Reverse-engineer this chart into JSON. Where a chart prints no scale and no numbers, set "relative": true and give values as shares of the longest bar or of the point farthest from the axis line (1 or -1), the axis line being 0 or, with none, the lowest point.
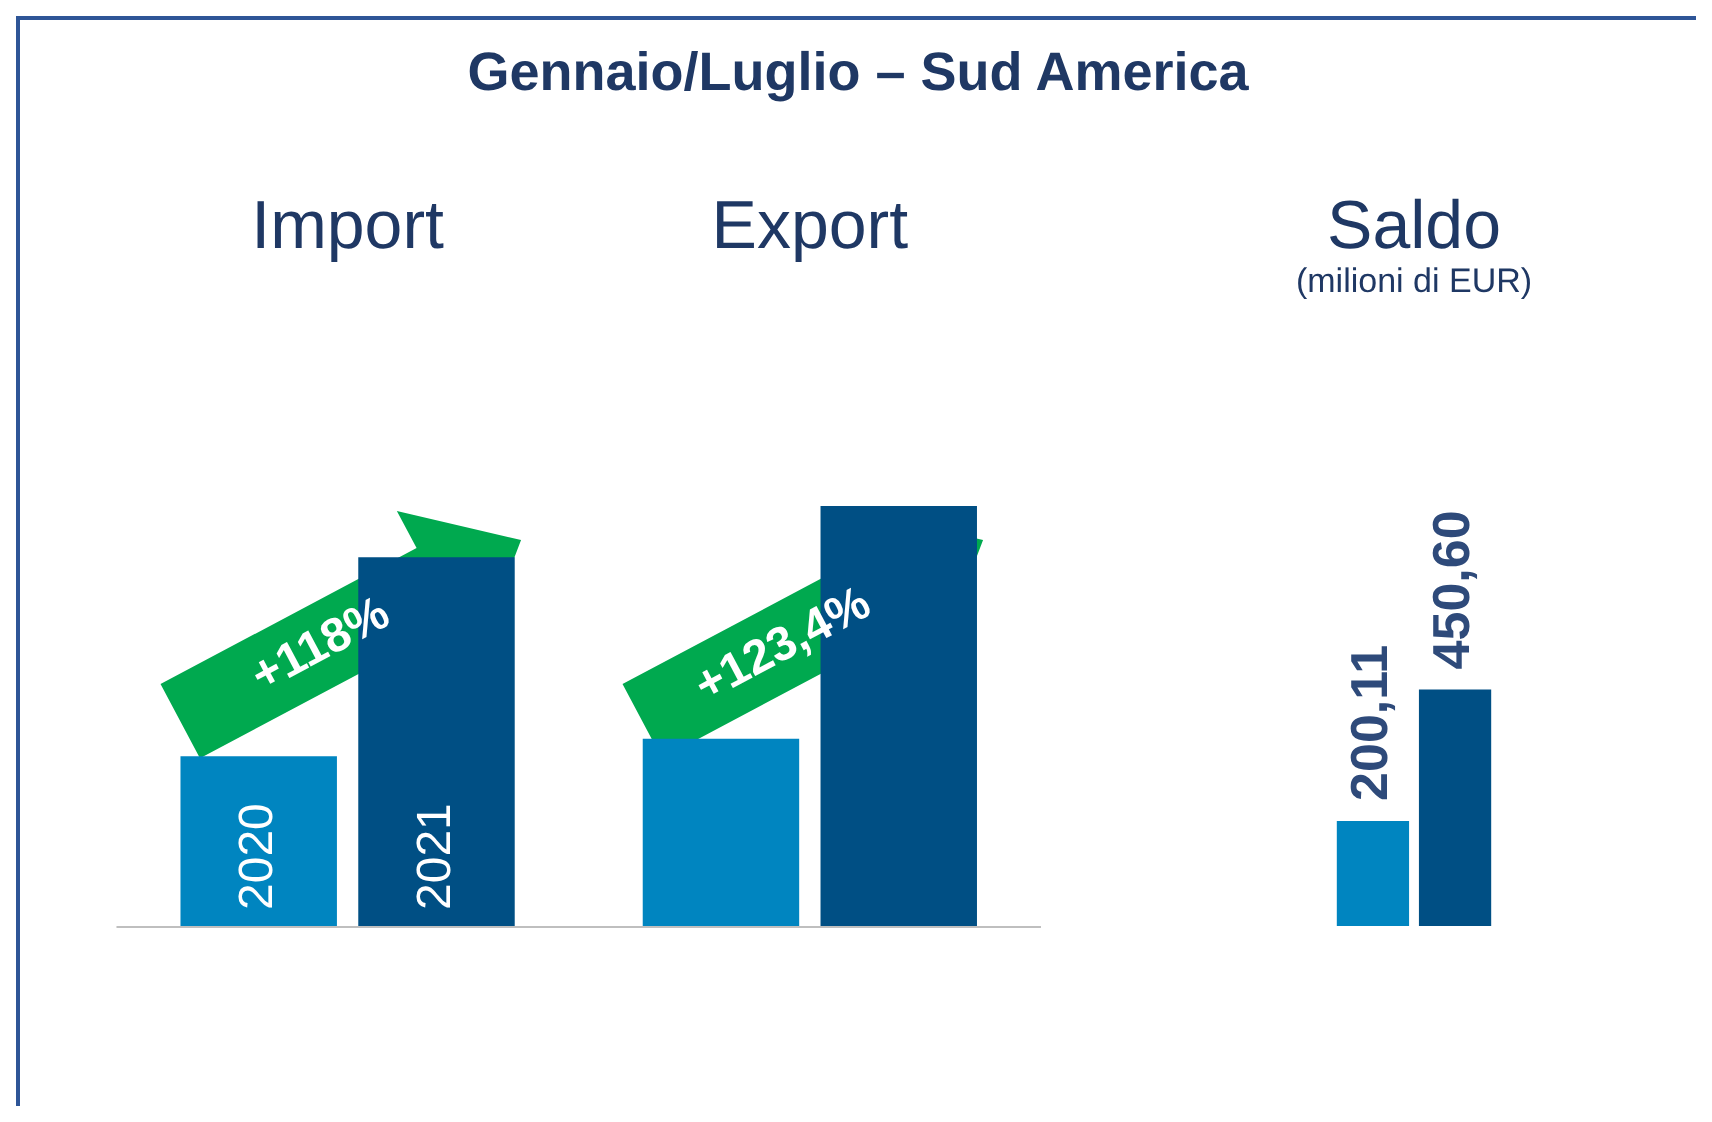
{
  "chart_data": [
    {
      "type": "bar",
      "title": "Gennaio/Luglio – Sud America",
      "categories": [
        "Import",
        "Export"
      ],
      "relative": true,
      "series": [
        {
          "name": "2020",
          "color": "#0085c0",
          "values": [
            0.404,
            0.446
          ]
        },
        {
          "name": "2021",
          "color": "#004f84",
          "values": [
            0.878,
            1
          ]
        }
      ],
      "annotations": [
        "+118%",
        "+123,4%"
      ],
      "legend": false,
      "grid": false
    },
    {
      "type": "bar",
      "subtitle": "(milioni di EUR)",
      "categories": [
        "Saldo"
      ],
      "series": [
        {
          "color": "#0085c0",
          "values": [
            200.11
          ],
          "value_labels": [
            "200,11"
          ]
        },
        {
          "color": "#004f84",
          "values": [
            450.6
          ],
          "value_labels": [
            "450,60"
          ]
        }
      ],
      "legend": false,
      "grid": false
    }
  ]
}
